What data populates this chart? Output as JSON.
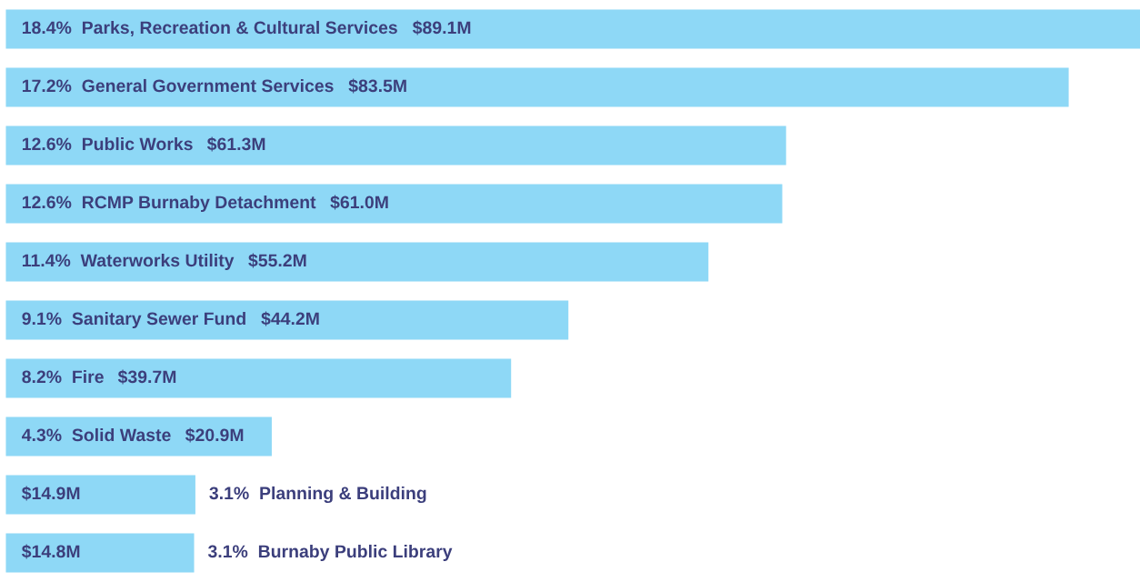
{
  "chart_data": {
    "type": "bar",
    "orientation": "horizontal",
    "color": "#8ed8f6",
    "categories": [
      "18.4%  Parks, Recreation & Cultural Services",
      "17.2%  General Government Services",
      "12.6%  Public Works",
      "12.6%  RCMP Burnaby Detachment",
      "11.4%  Waterworks Utility",
      "9.1%  Sanitary Sewer Fund",
      "8.2%  Fire",
      "4.3%  Solid Waste",
      "3.1%  Planning & Building",
      "3.1%  Burnaby Public Library"
    ],
    "values": [
      89.1,
      83.5,
      61.3,
      61.0,
      55.2,
      44.2,
      39.7,
      20.9,
      14.9,
      14.8
    ],
    "value_labels": [
      "$89.1M",
      "$83.5M",
      "$61.3M",
      "$61.0M",
      "$55.2M",
      "$44.2M",
      "$39.7M",
      "$20.9M",
      "$14.9M",
      "$14.8M"
    ]
  }
}
